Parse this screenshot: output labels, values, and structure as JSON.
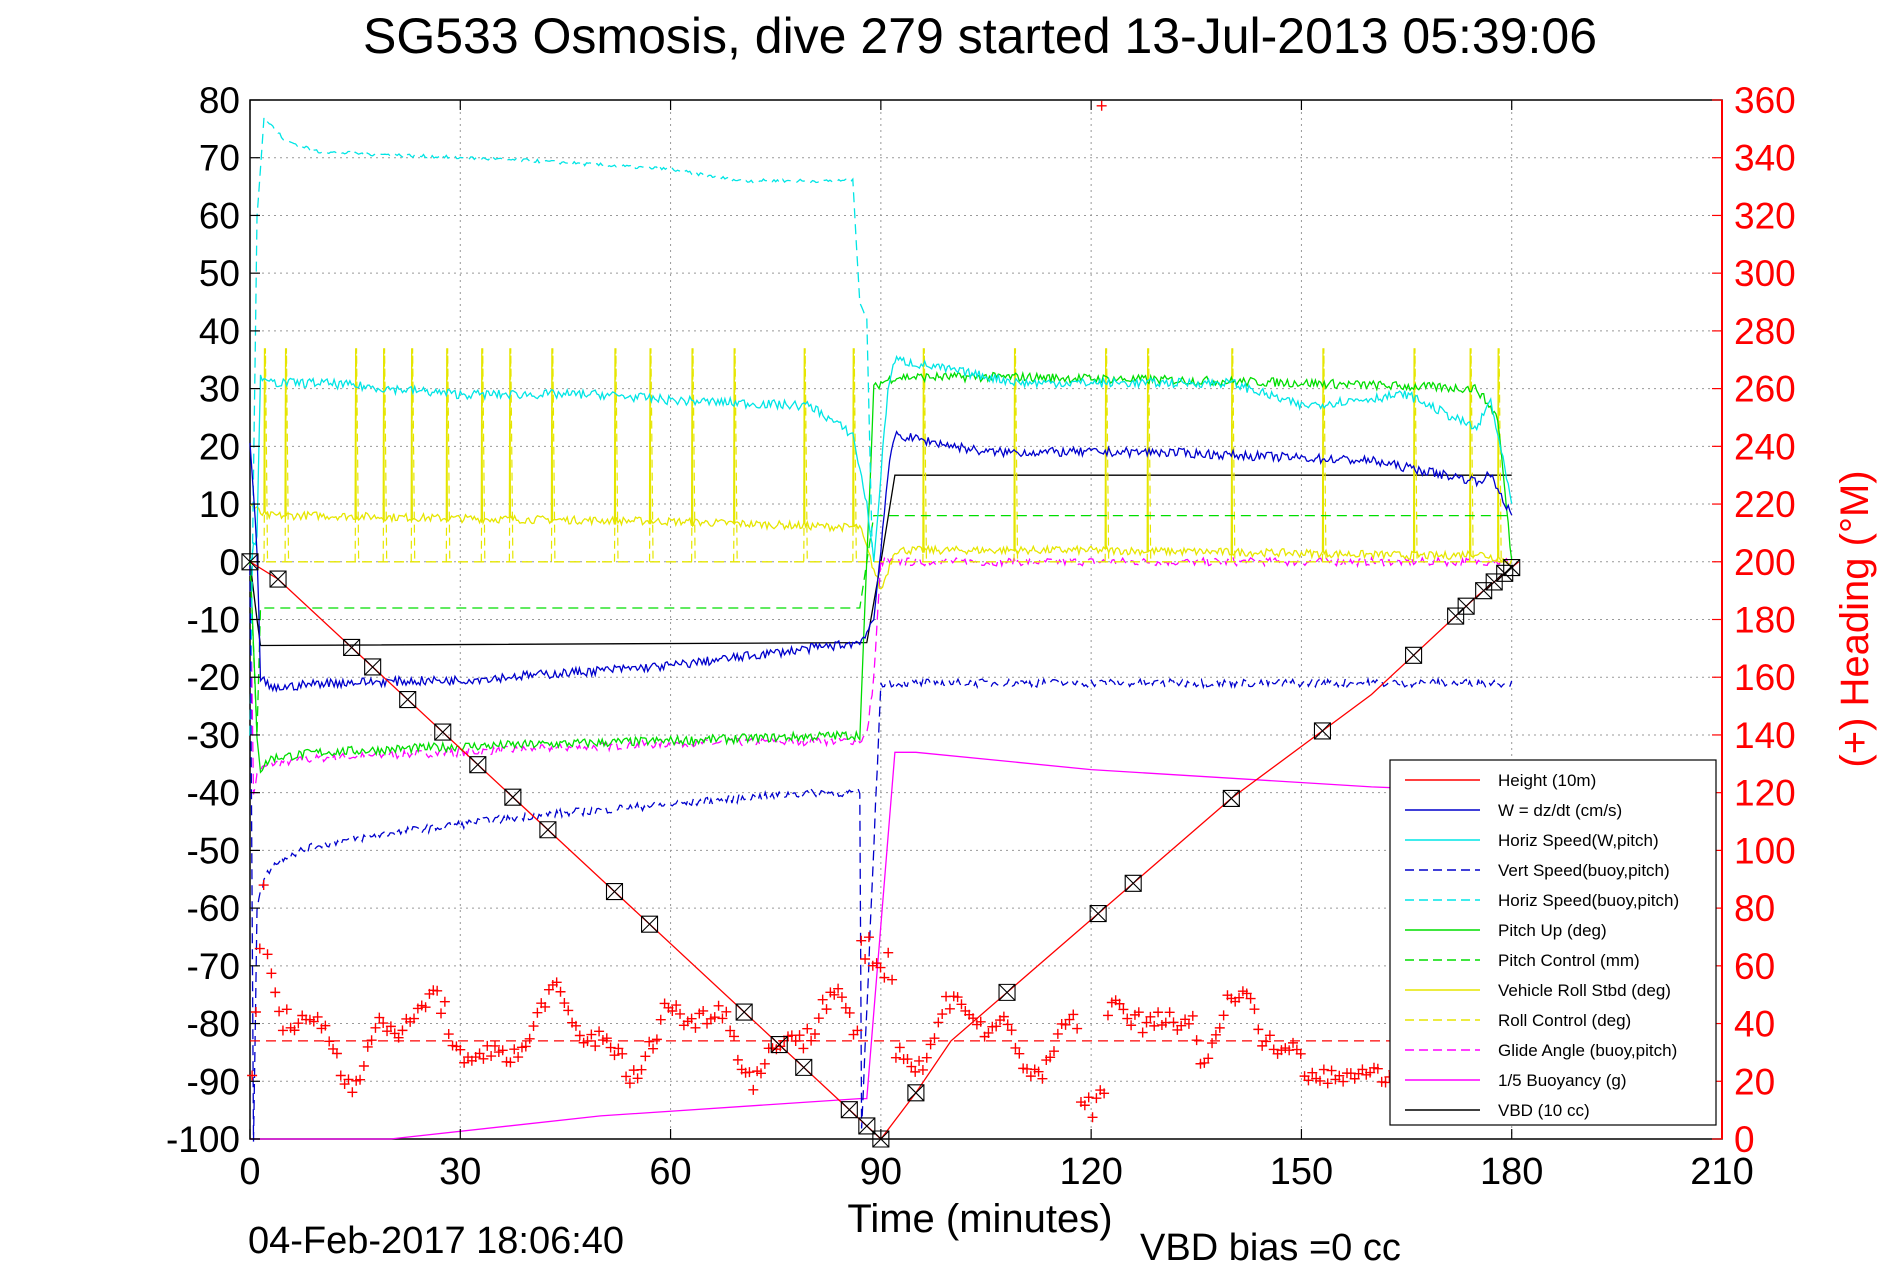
{
  "chart_data": {
    "type": "line",
    "title": "SG533 Osmosis, dive 279 started 13-Jul-2013 05:39:06",
    "xlabel": "Time (minutes)",
    "ylabel_right": "(+) Heading (°M)",
    "timestamp": "04-Feb-2017 18:06:40",
    "vbd_bias": "VBD bias =0 cc",
    "xlim": [
      0,
      210
    ],
    "ylim": [
      -100,
      80
    ],
    "ylim_right": [
      0,
      360
    ],
    "grid": true,
    "legend_position": "lower-right",
    "x_ticks": [
      "0",
      "30",
      "60",
      "90",
      "120",
      "150",
      "180",
      "210"
    ],
    "y_ticks": [
      "80",
      "70",
      "60",
      "50",
      "40",
      "30",
      "20",
      "10",
      "0",
      "-10",
      "-20",
      "-30",
      "-40",
      "-50",
      "-60",
      "-70",
      "-80",
      "-90",
      "-100"
    ],
    "y_right_ticks": [
      "360",
      "340",
      "320",
      "300",
      "280",
      "260",
      "240",
      "220",
      "200",
      "180",
      "160",
      "140",
      "120",
      "100",
      "80",
      "60",
      "40",
      "20",
      "0"
    ],
    "colors": {
      "height": "#ff0000",
      "w": "#0000cc",
      "horiz": "#00e5e5",
      "pitch": "#00dd00",
      "roll": "#e6e600",
      "glide": "#ff00ff",
      "buoy": "#ff00ff",
      "vbd": "#000000",
      "heading": "#ff0000",
      "grid": "#999999"
    },
    "series": [
      {
        "name": "Height (10m)",
        "key": "height",
        "style": "solid",
        "x": [
          0,
          4,
          90,
          95,
          100,
          140,
          160,
          175,
          181
        ],
        "y": [
          0,
          -3,
          -100,
          -92,
          -83,
          -41,
          -23,
          -6,
          0
        ]
      },
      {
        "name": "W = dz/dt (cm/s)",
        "key": "w",
        "style": "solid",
        "x": [
          0,
          1,
          1.5,
          3,
          10,
          30,
          60,
          80,
          87,
          89,
          91,
          92,
          105,
          130,
          160,
          175,
          177,
          180
        ],
        "y": [
          20,
          2,
          -20,
          -22,
          -21,
          -20.5,
          -18,
          -15,
          -14,
          -10,
          15,
          22,
          19,
          19,
          17.5,
          14,
          15,
          8
        ]
      },
      {
        "name": "Horiz Speed(W,pitch)",
        "key": "horiz",
        "style": "solid",
        "x": [
          0,
          1,
          1.5,
          2,
          10,
          30,
          50,
          60,
          80,
          86,
          88,
          89,
          90,
          91,
          92,
          110,
          140,
          150,
          165,
          175,
          177,
          180
        ],
        "y": [
          0,
          5,
          33,
          31,
          31,
          29,
          29,
          28,
          27,
          22,
          10,
          0,
          15,
          30,
          35,
          31,
          31,
          27,
          29,
          23,
          28,
          10
        ]
      },
      {
        "name": "Vert Speed(buoy,pitch)",
        "key": "w",
        "style": "dashed",
        "x": [
          0,
          0.5,
          1,
          2,
          3,
          5,
          10,
          20,
          40,
          60,
          80,
          87,
          87.2,
          90,
          180
        ],
        "y": [
          0,
          -100,
          -60,
          -55,
          -53,
          -51,
          -49,
          -47,
          -44,
          -42,
          -40,
          -40,
          -100,
          -21,
          -21
        ]
      },
      {
        "name": "Horiz Speed(buoy,pitch)",
        "key": "horiz",
        "style": "dashed",
        "x": [
          0,
          1,
          2,
          5,
          10,
          20,
          40,
          60,
          70,
          86,
          87,
          88,
          88.8
        ],
        "y": [
          -30,
          60,
          77,
          73,
          71,
          70.5,
          69.5,
          68,
          66,
          66,
          45,
          42,
          0
        ]
      },
      {
        "name": "Pitch Up (deg)",
        "key": "pitch",
        "style": "solid",
        "x": [
          0,
          1,
          1.5,
          3,
          10,
          30,
          60,
          87,
          88,
          89,
          90,
          92,
          110,
          150,
          175,
          178,
          180
        ],
        "y": [
          0,
          -30,
          -36,
          -34,
          -33,
          -32,
          -31,
          -30,
          0,
          30,
          31,
          32,
          32,
          31,
          30,
          25,
          0
        ]
      },
      {
        "name": "Pitch Control (mm)",
        "key": "pitch",
        "style": "dashed",
        "x": [
          0,
          1,
          1.5,
          87,
          89,
          90,
          180
        ],
        "y": [
          0,
          -30,
          -8,
          -8,
          8,
          8,
          8
        ]
      },
      {
        "name": "Vehicle Roll Stbd (deg)",
        "key": "roll",
        "style": "solid",
        "x": [
          0,
          2,
          10,
          30,
          60,
          85,
          87,
          90,
          92,
          120,
          150,
          170,
          175,
          180
        ],
        "y": [
          10,
          8,
          8,
          7.5,
          7,
          6,
          6,
          -5,
          2,
          2,
          1.5,
          1,
          1.5,
          0
        ]
      },
      {
        "name": "Roll Control (deg)",
        "key": "roll",
        "style": "dashed",
        "x": [
          0,
          87,
          88,
          180
        ],
        "y": [
          0,
          0,
          0,
          0
        ]
      },
      {
        "name": "Glide Angle (buoy,pitch)",
        "key": "glide",
        "style": "dashed",
        "x": [
          0,
          0.5,
          1,
          1.5,
          3,
          10,
          30,
          60,
          87,
          88,
          89,
          90,
          180
        ],
        "y": [
          0,
          -40,
          -37,
          -36,
          -35,
          -34,
          -33,
          -31.5,
          -31,
          -30,
          -20,
          0,
          0
        ]
      },
      {
        "name": "1/5 Buoyancy (g)",
        "key": "buoy",
        "style": "solid",
        "x": [
          0,
          20,
          50,
          87,
          88,
          92,
          95,
          120,
          160,
          181
        ],
        "y": [
          -100,
          -100,
          -96,
          -93,
          -93,
          -33,
          -33,
          -36,
          -39,
          -40
        ]
      },
      {
        "name": "VBD (10 cc)",
        "key": "vbd",
        "style": "solid",
        "x": [
          0,
          1,
          1.5,
          88,
          90,
          92,
          180
        ],
        "y": [
          0,
          -10,
          -14.5,
          -14,
          0,
          15,
          15
        ]
      }
    ],
    "annotations": {
      "spike_times": [
        2,
        5,
        15,
        19,
        23,
        28,
        33,
        37,
        43,
        52,
        57,
        63,
        69,
        79,
        86,
        96,
        109,
        122,
        128,
        140,
        153,
        166,
        174,
        178
      ],
      "marker_times": [
        0,
        4,
        14.5,
        17.5,
        22.5,
        27.5,
        32.5,
        37.5,
        42.5,
        52,
        57,
        70.5,
        75.5,
        79,
        85.5,
        88,
        90,
        95,
        108,
        121,
        126,
        140,
        153,
        166,
        172,
        173.5,
        176,
        177.5,
        179,
        180
      ],
      "heading_mean_line": 34,
      "heading_outlier_x": 121.5,
      "heading_outlier_heading": 358
    }
  }
}
